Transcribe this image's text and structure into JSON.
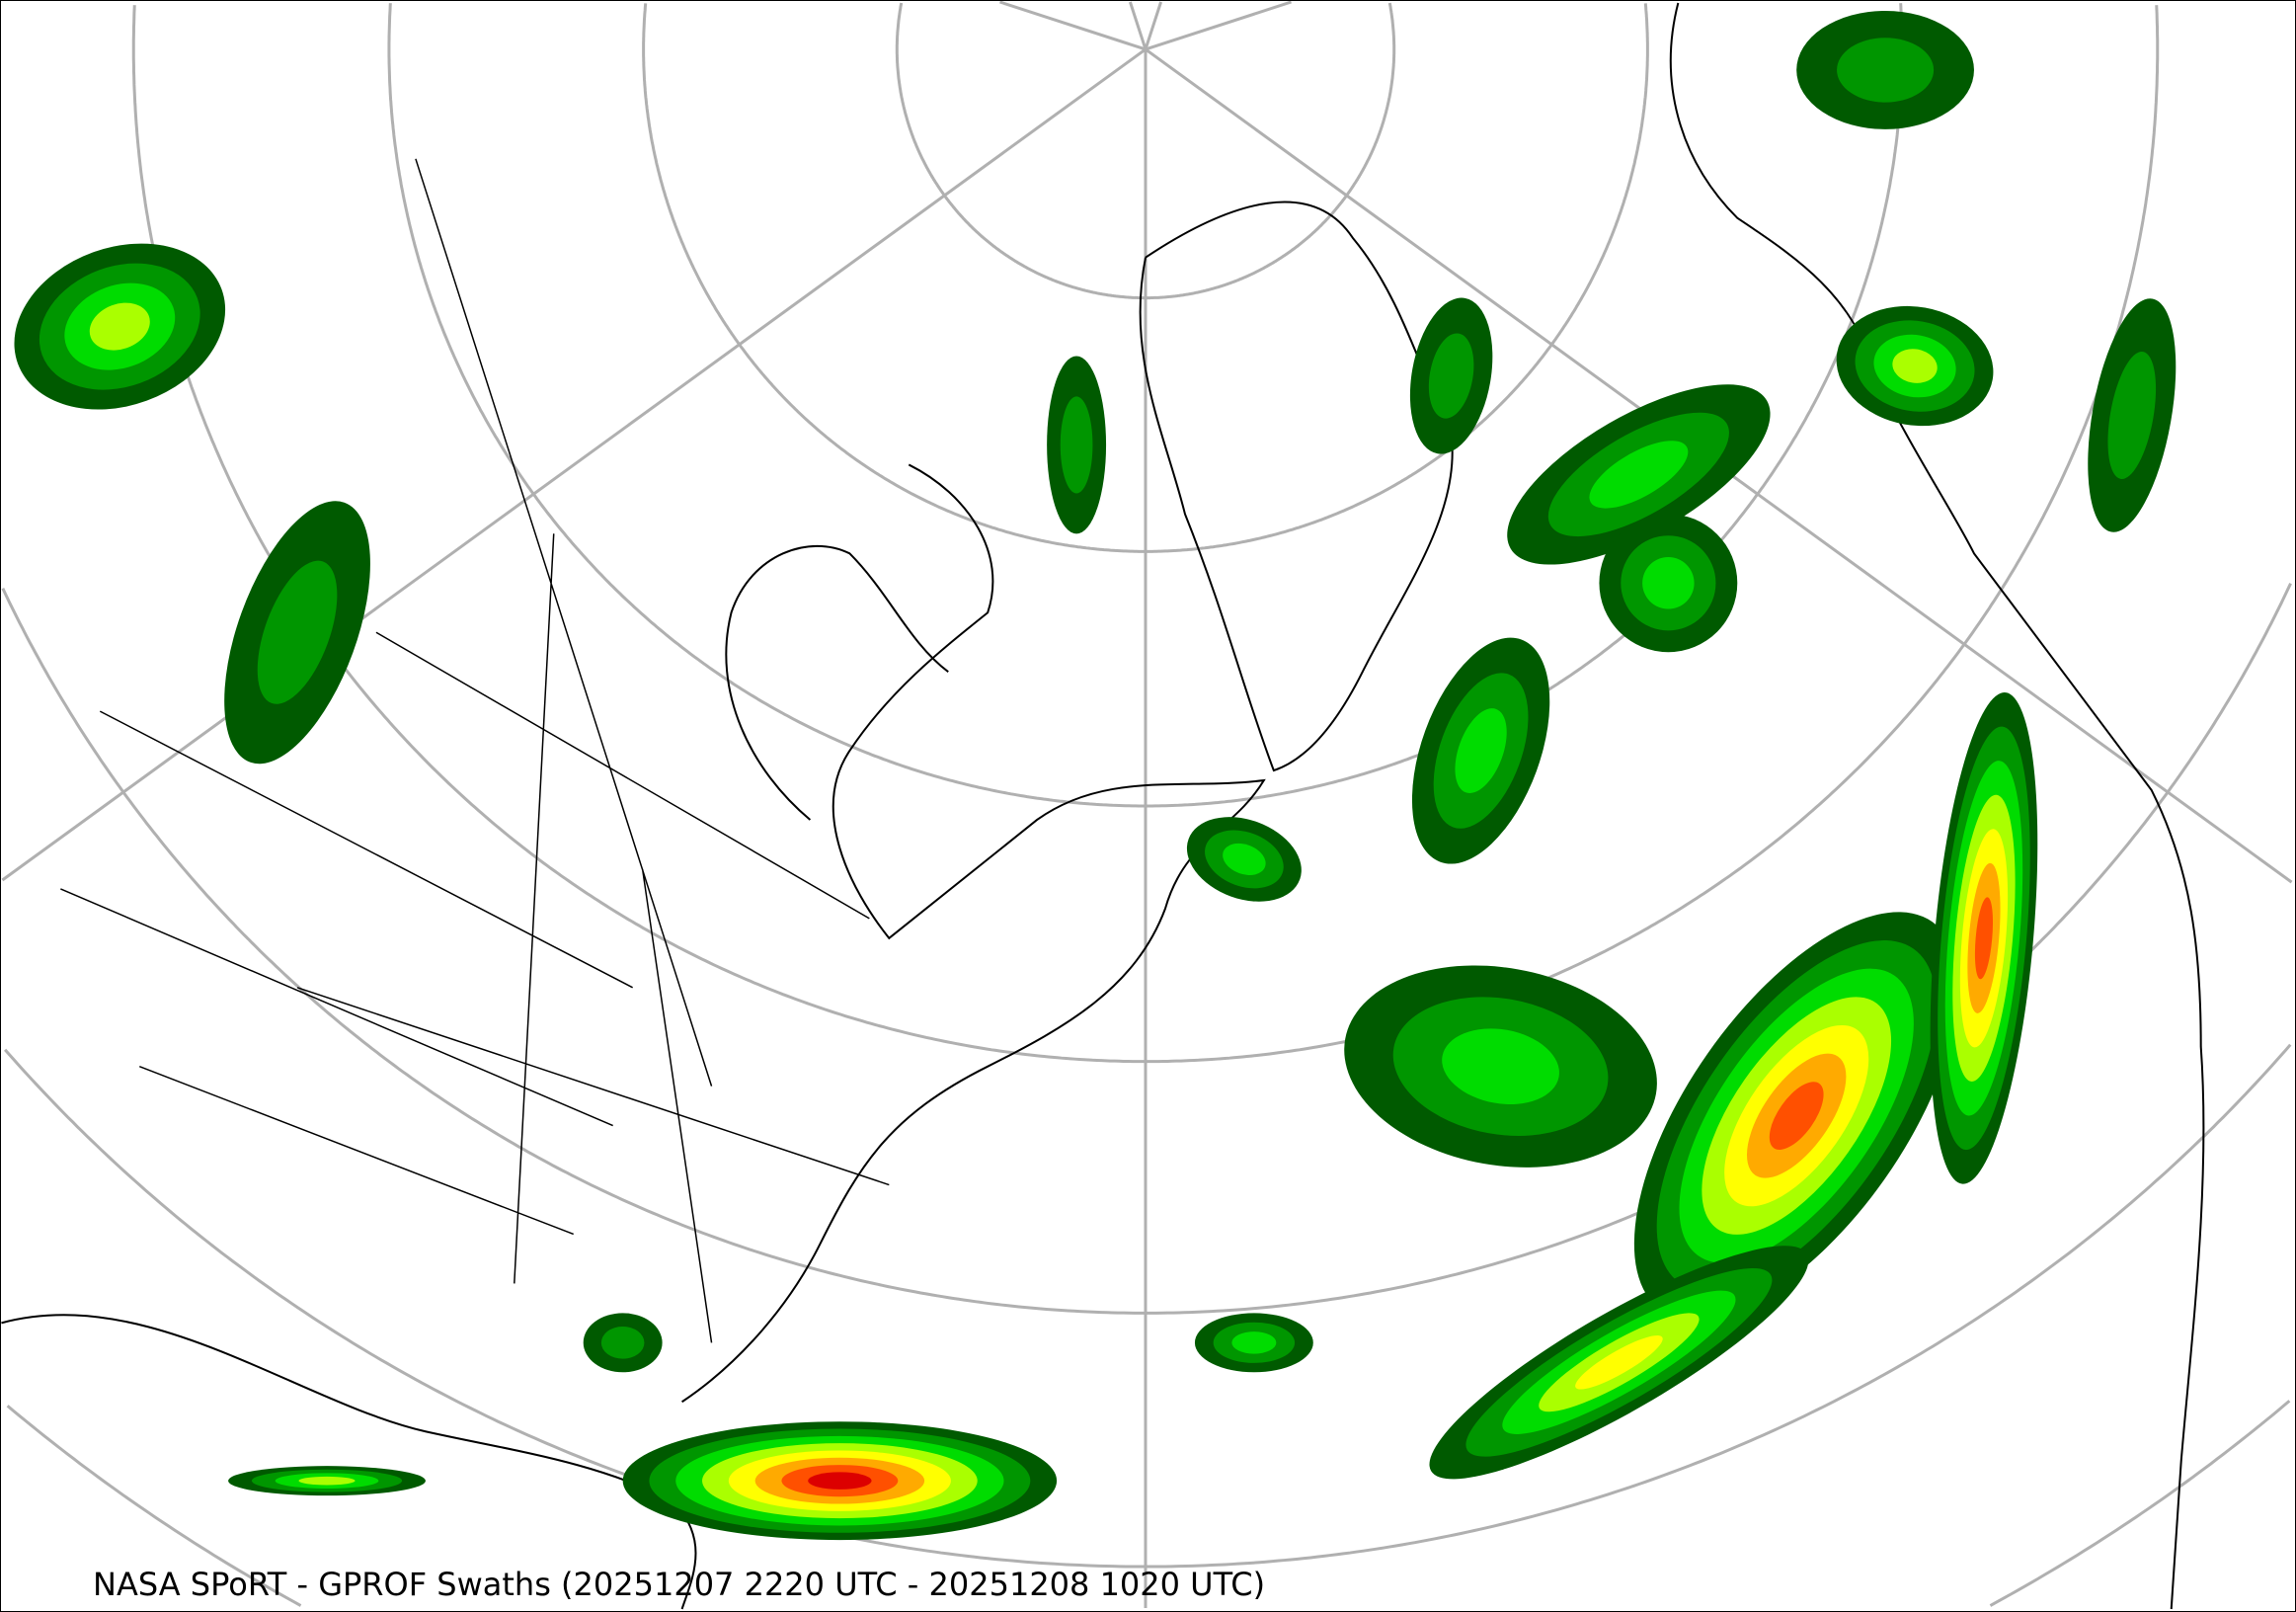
{
  "title": "NASA SPoRT - GPROF Swaths (20251207 2220 UTC - 20251208 1020 UTC)",
  "map": {
    "projection": "north-polar-stereographic",
    "graticule_color": "#b0b0b0",
    "coastline_color": "#000000",
    "precip_colors": [
      "#005a00",
      "#009600",
      "#00dc00",
      "#aaff00",
      "#ffff00",
      "#ffaa00",
      "#ff5000",
      "#dc0000"
    ]
  }
}
